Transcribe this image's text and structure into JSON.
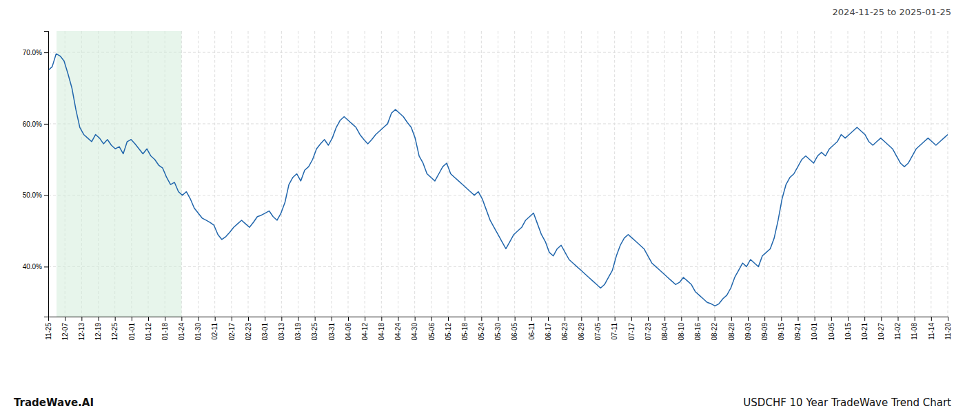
{
  "chart_data": {
    "type": "line",
    "title": "USDCHF 10 Year TradeWave Trend Chart",
    "subtitle": "2024-11-25 to 2025-01-25",
    "annotations": [
      "TradeWave.AI"
    ],
    "color": "#2166ac",
    "grid": true,
    "highlight_range": [
      2.111111111111111,
      33.77777777777778
    ],
    "highlight_color": "#d4edda",
    "xlim": [
      0,
      228
    ],
    "xticks": [
      {
        "value": 0,
        "label": "11-25"
      },
      {
        "value": 4.222222222222222,
        "label": "12-07"
      },
      {
        "value": 8.444444444444445,
        "label": "12-13"
      },
      {
        "value": 12.666666666666666,
        "label": "12-19"
      },
      {
        "value": 16.88888888888889,
        "label": "12-25"
      },
      {
        "value": 21.11111111111111,
        "label": "01-01"
      },
      {
        "value": 25.333333333333332,
        "label": "01-12"
      },
      {
        "value": 29.555555555555557,
        "label": "01-18"
      },
      {
        "value": 33.77777777777778,
        "label": "01-24"
      },
      {
        "value": 38,
        "label": "01-30"
      },
      {
        "value": 42.22222222222222,
        "label": "02-11"
      },
      {
        "value": 46.44444444444444,
        "label": "02-17"
      },
      {
        "value": 50.666666666666664,
        "label": "02-23"
      },
      {
        "value": 54.888888888888886,
        "label": "03-01"
      },
      {
        "value": 59.111111111111114,
        "label": "03-13"
      },
      {
        "value": 63.333333333333336,
        "label": "03-19"
      },
      {
        "value": 67.55555555555556,
        "label": "03-25"
      },
      {
        "value": 71.77777777777777,
        "label": "03-31"
      },
      {
        "value": 76,
        "label": "04-06"
      },
      {
        "value": 80.22222222222223,
        "label": "04-12"
      },
      {
        "value": 84.44444444444444,
        "label": "04-18"
      },
      {
        "value": 88.66666666666667,
        "label": "04-24"
      },
      {
        "value": 92.88888888888889,
        "label": "04-30"
      },
      {
        "value": 97.11111111111111,
        "label": "05-06"
      },
      {
        "value": 101.33333333333333,
        "label": "05-12"
      },
      {
        "value": 105.55555555555556,
        "label": "05-18"
      },
      {
        "value": 109.77777777777777,
        "label": "05-24"
      },
      {
        "value": 114,
        "label": "05-30"
      },
      {
        "value": 118.22222222222223,
        "label": "06-05"
      },
      {
        "value": 122.44444444444444,
        "label": "06-11"
      },
      {
        "value": 126.66666666666667,
        "label": "06-17"
      },
      {
        "value": 130.88888888888889,
        "label": "06-23"
      },
      {
        "value": 135.11111111111111,
        "label": "06-29"
      },
      {
        "value": 139.33333333333334,
        "label": "07-05"
      },
      {
        "value": 143.55555555555554,
        "label": "07-11"
      },
      {
        "value": 147.77777777777777,
        "label": "07-17"
      },
      {
        "value": 152,
        "label": "07-23"
      },
      {
        "value": 156.22222222222223,
        "label": "08-04"
      },
      {
        "value": 160.44444444444446,
        "label": "08-10"
      },
      {
        "value": 164.66666666666666,
        "label": "08-16"
      },
      {
        "value": 168.88888888888889,
        "label": "08-22"
      },
      {
        "value": 173.11111111111111,
        "label": "08-28"
      },
      {
        "value": 177.33333333333334,
        "label": "09-03"
      },
      {
        "value": 181.55555555555554,
        "label": "09-09"
      },
      {
        "value": 185.77777777777777,
        "label": "09-15"
      },
      {
        "value": 190,
        "label": "09-21"
      },
      {
        "value": 194.22222222222223,
        "label": "10-01"
      },
      {
        "value": 198.44444444444446,
        "label": "10-05"
      },
      {
        "value": 202.66666666666666,
        "label": "10-15"
      },
      {
        "value": 206.88888888888889,
        "label": "10-21"
      },
      {
        "value": 211.11111111111111,
        "label": "10-27"
      },
      {
        "value": 215.33333333333334,
        "label": "11-02"
      },
      {
        "value": 219.55555555555554,
        "label": "11-08"
      },
      {
        "value": 223.77777777777777,
        "label": "11-14"
      },
      {
        "value": 228,
        "label": "11-20"
      }
    ],
    "ylim": [
      33,
      73
    ],
    "yticks": [
      {
        "value": 40.0,
        "label": "40.0%"
      },
      {
        "value": 50.0,
        "label": "50.0%"
      },
      {
        "value": 60.0,
        "label": "60.0%"
      },
      {
        "value": 70.0,
        "label": "70.0%"
      }
    ],
    "x": [
      0,
      1,
      2,
      3,
      4,
      5,
      6,
      7,
      8,
      9,
      10,
      11,
      12,
      13,
      14,
      15,
      16,
      17,
      18,
      19,
      20,
      21,
      22,
      23,
      24,
      25,
      26,
      27,
      28,
      29,
      30,
      31,
      32,
      33,
      34,
      35,
      36,
      37,
      38,
      39,
      40,
      41,
      42,
      43,
      44,
      45,
      46,
      47,
      48,
      49,
      50,
      51,
      52,
      53,
      54,
      55,
      56,
      57,
      58,
      59,
      60,
      61,
      62,
      63,
      64,
      65,
      66,
      67,
      68,
      69,
      70,
      71,
      72,
      73,
      74,
      75,
      76,
      77,
      78,
      79,
      80,
      81,
      82,
      83,
      84,
      85,
      86,
      87,
      88,
      89,
      90,
      91,
      92,
      93,
      94,
      95,
      96,
      97,
      98,
      99,
      100,
      101,
      102,
      103,
      104,
      105,
      106,
      107,
      108,
      109,
      110,
      111,
      112,
      113,
      114,
      115,
      116,
      117,
      118,
      119,
      120,
      121,
      122,
      123,
      124,
      125,
      126,
      127,
      128,
      129,
      130,
      131,
      132,
      133,
      134,
      135,
      136,
      137,
      138,
      139,
      140,
      141,
      142,
      143,
      144,
      145,
      146,
      147,
      148,
      149,
      150,
      151,
      152,
      153,
      154,
      155,
      156,
      157,
      158,
      159,
      160,
      161,
      162,
      163,
      164,
      165,
      166,
      167,
      168,
      169,
      170,
      171,
      172,
      173,
      174,
      175,
      176,
      177,
      178,
      179,
      180,
      181,
      182,
      183,
      184,
      185,
      186,
      187,
      188,
      189,
      190,
      191,
      192,
      193,
      194,
      195,
      196,
      197,
      198,
      199,
      200,
      201,
      202,
      203,
      204,
      205,
      206,
      207,
      208,
      209,
      210,
      211,
      212,
      213,
      214,
      215,
      216,
      217,
      218,
      219,
      220,
      221,
      222,
      223,
      224,
      225,
      226,
      227,
      228
    ],
    "values": [
      67.5,
      68.0,
      69.8,
      69.5,
      68.8,
      67.0,
      65.0,
      62.0,
      59.5,
      58.5,
      58.0,
      57.5,
      58.5,
      58.0,
      57.2,
      57.8,
      57.0,
      56.5,
      56.8,
      55.8,
      57.5,
      57.8,
      57.2,
      56.5,
      55.8,
      56.5,
      55.5,
      55.0,
      54.2,
      53.8,
      52.5,
      51.5,
      51.8,
      50.5,
      50.0,
      50.5,
      49.5,
      48.2,
      47.5,
      46.8,
      46.5,
      46.2,
      45.8,
      44.5,
      43.8,
      44.2,
      44.8,
      45.5,
      46.0,
      46.5,
      46.0,
      45.5,
      46.2,
      47.0,
      47.2,
      47.5,
      47.8,
      47.0,
      46.5,
      47.5,
      49.0,
      51.5,
      52.5,
      53.0,
      52.0,
      53.5,
      54.0,
      55.0,
      56.5,
      57.2,
      57.8,
      57.0,
      58.0,
      59.5,
      60.5,
      61.0,
      60.5,
      60.0,
      59.5,
      58.5,
      57.8,
      57.2,
      57.8,
      58.5,
      59.0,
      59.5,
      60.0,
      61.5,
      62.0,
      61.5,
      61.0,
      60.2,
      59.5,
      58.0,
      55.5,
      54.5,
      53.0,
      52.5,
      52.0,
      53.0,
      54.0,
      54.5,
      53.0,
      52.5,
      52.0,
      51.5,
      51.0,
      50.5,
      50.0,
      50.5,
      49.5,
      48.0,
      46.5,
      45.5,
      44.5,
      43.5,
      42.5,
      43.5,
      44.5,
      45.0,
      45.5,
      46.5,
      47.0,
      47.5,
      46.0,
      44.5,
      43.5,
      42.0,
      41.5,
      42.5,
      43.0,
      42.0,
      41.0,
      40.5,
      40.0,
      39.5,
      39.0,
      38.5,
      38.0,
      37.5,
      37.0,
      37.5,
      38.5,
      39.5,
      41.5,
      43.0,
      44.0,
      44.5,
      44.0,
      43.5,
      43.0,
      42.5,
      41.5,
      40.5,
      40.0,
      39.5,
      39.0,
      38.5,
      38.0,
      37.5,
      37.8,
      38.5,
      38.0,
      37.5,
      36.5,
      36.0,
      35.5,
      35.0,
      34.8,
      34.5,
      34.8,
      35.5,
      36.0,
      37.0,
      38.5,
      39.5,
      40.5,
      40.0,
      41.0,
      40.5,
      40.0,
      41.5,
      42.0,
      42.5,
      44.0,
      46.5,
      49.5,
      51.5,
      52.5,
      53.0,
      54.0,
      55.0,
      55.5,
      55.0,
      54.5,
      55.5,
      56.0,
      55.5,
      56.5,
      57.0,
      57.5,
      58.5,
      58.0,
      58.5,
      59.0,
      59.5,
      59.0,
      58.5,
      57.5,
      57.0,
      57.5,
      58.0,
      57.5,
      57.0,
      56.5,
      55.5,
      54.5,
      54.0,
      54.5,
      55.5,
      56.5,
      57.0,
      57.5,
      58.0,
      57.5,
      57.0,
      57.5,
      58.0,
      58.5
    ]
  }
}
